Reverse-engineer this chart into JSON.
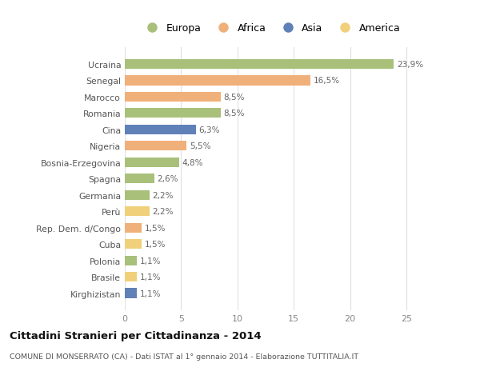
{
  "categories": [
    "Ucraina",
    "Senegal",
    "Marocco",
    "Romania",
    "Cina",
    "Nigeria",
    "Bosnia-Erzegovina",
    "Spagna",
    "Germania",
    "Perù",
    "Rep. Dem. d/Congo",
    "Cuba",
    "Polonia",
    "Brasile",
    "Kirghizistan"
  ],
  "values": [
    23.9,
    16.5,
    8.5,
    8.5,
    6.3,
    5.5,
    4.8,
    2.6,
    2.2,
    2.2,
    1.5,
    1.5,
    1.1,
    1.1,
    1.1
  ],
  "labels": [
    "23,9%",
    "16,5%",
    "8,5%",
    "8,5%",
    "6,3%",
    "5,5%",
    "4,8%",
    "2,6%",
    "2,2%",
    "2,2%",
    "1,5%",
    "1,5%",
    "1,1%",
    "1,1%",
    "1,1%"
  ],
  "colors": [
    "#a8c07a",
    "#f0b07a",
    "#f0b07a",
    "#a8c07a",
    "#6080b8",
    "#f0b07a",
    "#a8c07a",
    "#a8c07a",
    "#a8c07a",
    "#f0d07a",
    "#f0b07a",
    "#f0d07a",
    "#a8c07a",
    "#f0d07a",
    "#6080b8"
  ],
  "legend_labels": [
    "Europa",
    "Africa",
    "Asia",
    "America"
  ],
  "legend_colors": [
    "#a8c07a",
    "#f0b07a",
    "#6080b8",
    "#f0d07a"
  ],
  "title": "Cittadini Stranieri per Cittadinanza - 2014",
  "subtitle": "COMUNE DI MONSERRATO (CA) - Dati ISTAT al 1° gennaio 2014 - Elaborazione TUTTITALIA.IT",
  "xlim": [
    0,
    26
  ],
  "background_color": "#ffffff",
  "grid_color": "#e0e0e0"
}
